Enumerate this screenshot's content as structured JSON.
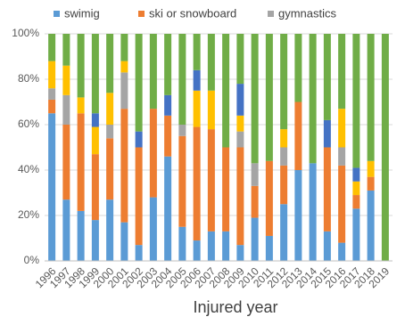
{
  "chart_data": {
    "type": "stacked_bar_percent",
    "x_label": "Injured year",
    "categories": [
      "1996",
      "1997",
      "1998",
      "1999",
      "2000",
      "2001",
      "2002",
      "2003",
      "2004",
      "2005",
      "2006",
      "2007",
      "2008",
      "2009",
      "2010",
      "2011",
      "2012",
      "2013",
      "2014",
      "2015",
      "2016",
      "2017",
      "2018",
      "2019"
    ],
    "series": [
      {
        "name": "swimig",
        "color": "#5b9bd5",
        "values": [
          65,
          27,
          22,
          18,
          27,
          17,
          7,
          28,
          46,
          15,
          9,
          13,
          13,
          7,
          19,
          11,
          25,
          40,
          43,
          13,
          8,
          23,
          31,
          0
        ]
      },
      {
        "name": "ski or snowboard",
        "color": "#ed7d31",
        "values": [
          6,
          33,
          43,
          29,
          27,
          50,
          43,
          39,
          18,
          40,
          50,
          45,
          37,
          43,
          14,
          33,
          17,
          30,
          0,
          37,
          34,
          6,
          6,
          0
        ]
      },
      {
        "name": "gymnastics",
        "color": "#a5a5a5",
        "values": [
          5,
          13,
          0,
          0,
          6,
          16,
          0,
          0,
          0,
          5,
          0,
          0,
          0,
          7,
          10,
          0,
          8,
          0,
          0,
          0,
          8,
          0,
          0,
          0
        ]
      },
      {
        "color": "#ffc000",
        "values": [
          12,
          13,
          7,
          12,
          14,
          5,
          0,
          0,
          0,
          0,
          16,
          17,
          0,
          7,
          0,
          0,
          8,
          0,
          0,
          0,
          17,
          6,
          7,
          0
        ]
      },
      {
        "color": "#4472c4",
        "values": [
          0,
          0,
          0,
          6,
          0,
          0,
          7,
          0,
          9,
          0,
          9,
          0,
          0,
          14,
          0,
          0,
          0,
          0,
          0,
          12,
          0,
          6,
          0,
          0
        ]
      },
      {
        "color": "#70ad47",
        "values": [
          12,
          14,
          28,
          35,
          26,
          12,
          43,
          33,
          27,
          40,
          16,
          25,
          50,
          22,
          57,
          56,
          42,
          30,
          57,
          38,
          33,
          59,
          56,
          100
        ]
      }
    ],
    "ylim": [
      0,
      100
    ],
    "yticks": [
      {
        "value": 0,
        "label": "0%"
      },
      {
        "value": 20,
        "label": "20%"
      },
      {
        "value": 40,
        "label": "40%"
      },
      {
        "value": 60,
        "label": "60%"
      },
      {
        "value": 80,
        "label": "80%"
      },
      {
        "value": 100,
        "label": "100%"
      }
    ],
    "grid": true,
    "legend": "top"
  }
}
